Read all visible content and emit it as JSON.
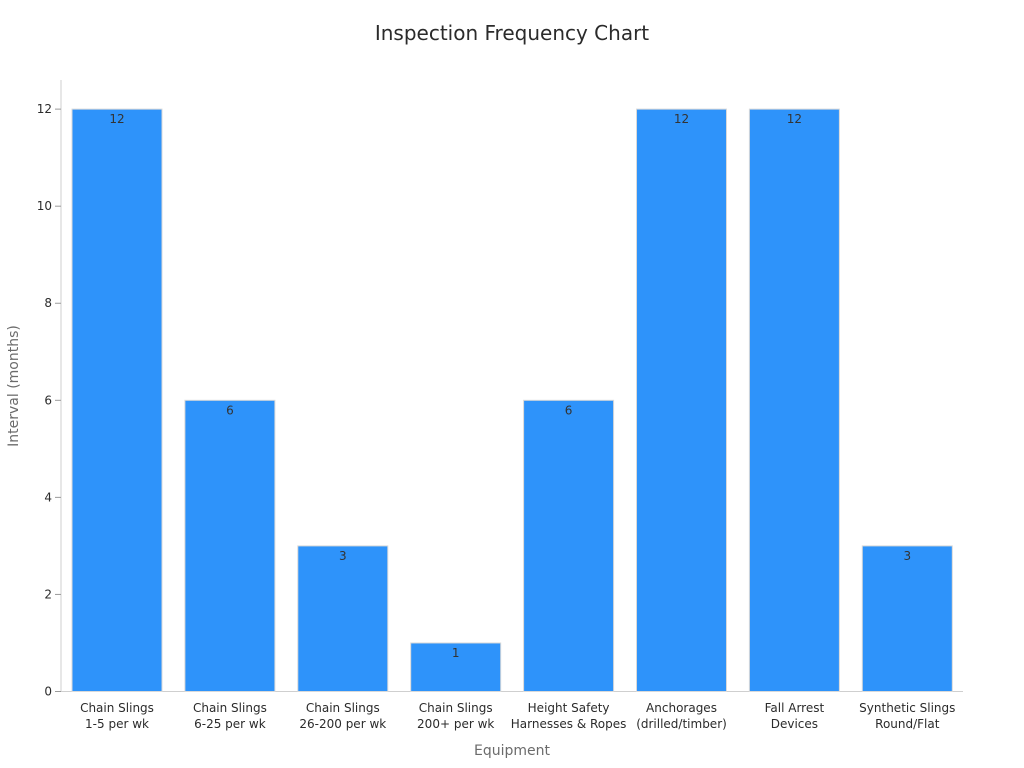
{
  "chart_data": {
    "type": "bar",
    "title": "Inspection Frequency Chart",
    "xlabel": "Equipment",
    "ylabel": "Interval (months)",
    "categories": [
      [
        "Chain Slings",
        "1-5 per wk"
      ],
      [
        "Chain Slings",
        "6-25 per wk"
      ],
      [
        "Chain Slings",
        "26-200 per wk"
      ],
      [
        "Chain Slings",
        "200+ per wk"
      ],
      [
        "Height Safety",
        "Harnesses & Ropes"
      ],
      [
        "Anchorages",
        "(drilled/timber)"
      ],
      [
        "Fall Arrest",
        "Devices"
      ],
      [
        "Synthetic Slings",
        "Round/Flat"
      ]
    ],
    "values": [
      12,
      6,
      3,
      1,
      6,
      12,
      12,
      3
    ],
    "ylim": [
      0,
      12.6
    ],
    "yticks": [
      0,
      2,
      4,
      6,
      8,
      10,
      12
    ],
    "bar_color": "#2e93fa",
    "grid": false,
    "data_labels": true
  }
}
